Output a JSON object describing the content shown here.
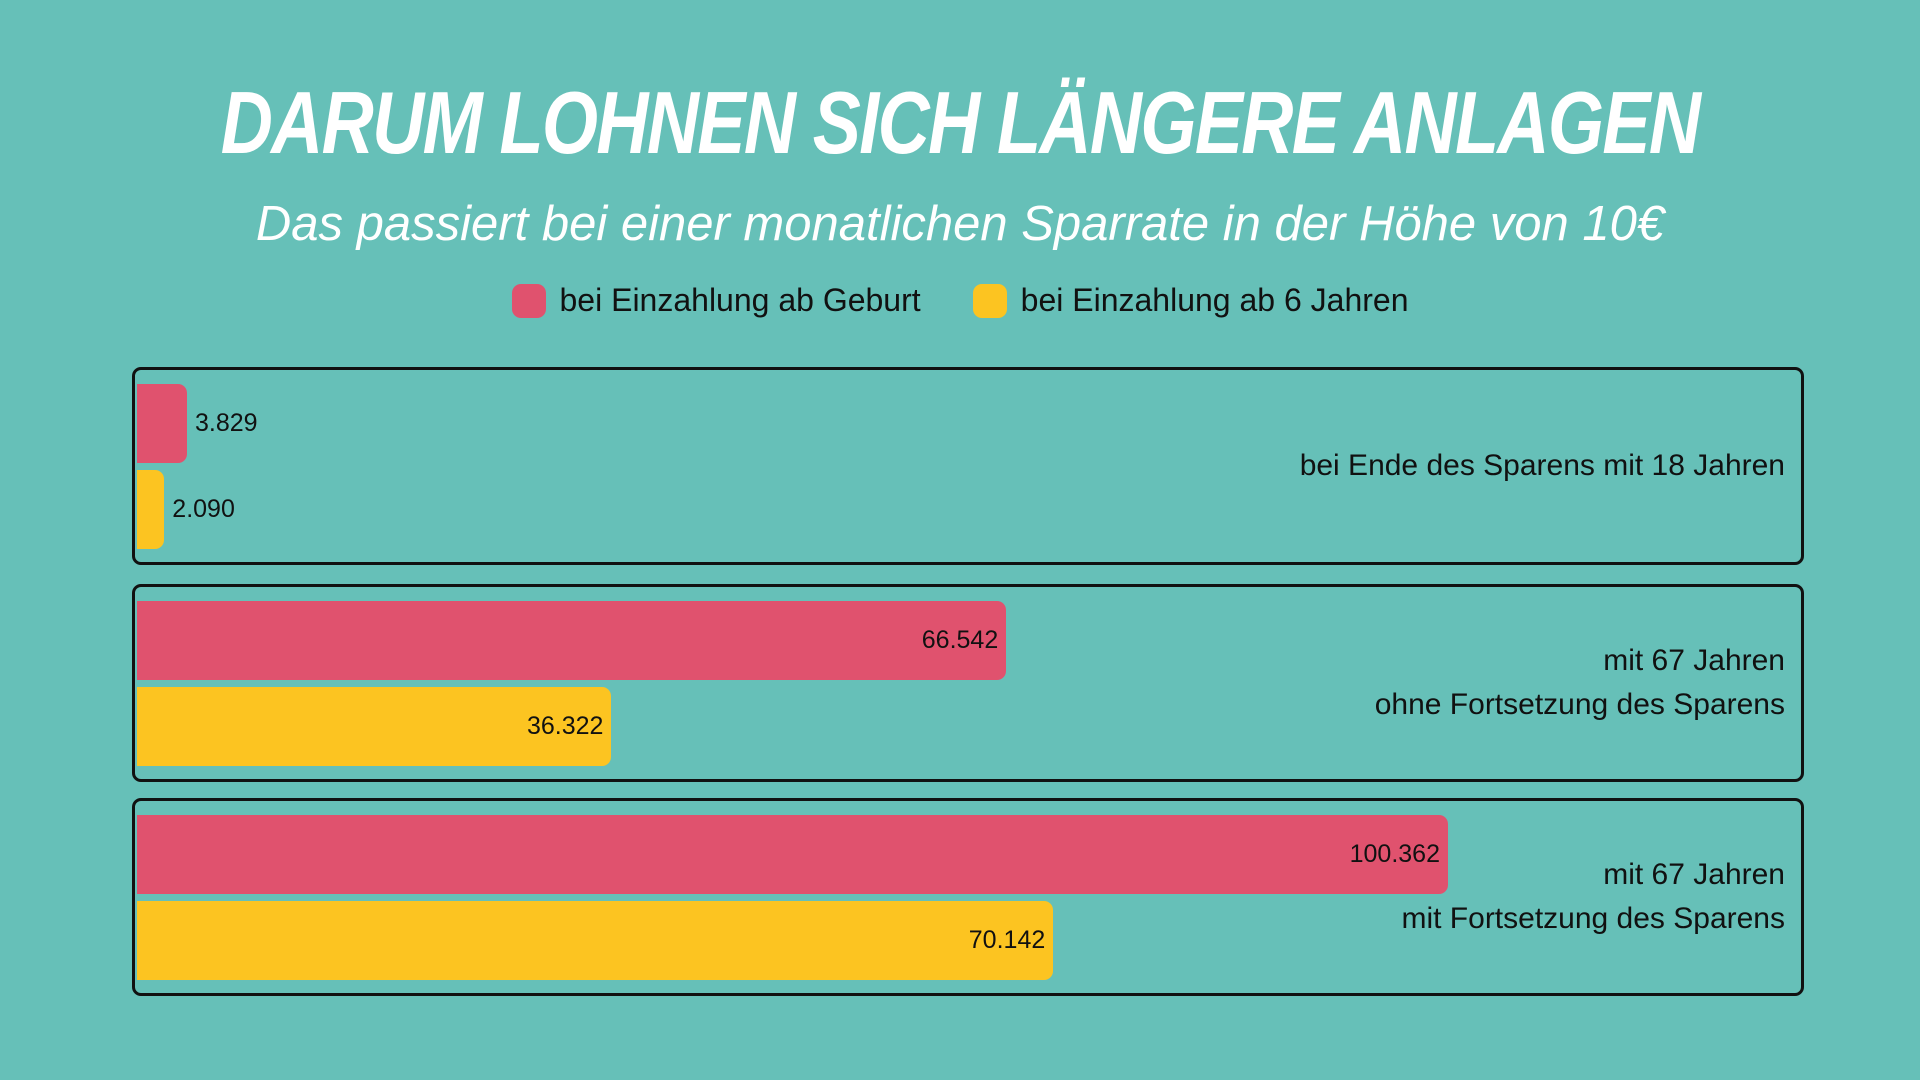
{
  "chart_data": {
    "type": "bar",
    "orientation": "horizontal",
    "title": "DARUM LOHNEN SICH LÄNGERE ANLAGEN",
    "subtitle": "Das passiert bei einer monatlichen Sparrate in der Höhe von 10€",
    "legend_placement": "top",
    "grid": false,
    "categories": [
      [
        "bei Ende des Sparens mit 18 Jahren"
      ],
      [
        "mit 67 Jahren",
        "ohne Fortsetzung des Sparens"
      ],
      [
        "mit 67 Jahren",
        "mit Fortsetzung des Sparens"
      ]
    ],
    "series": [
      {
        "name": "bei Einzahlung ab Geburt",
        "color": "#E0526E",
        "values": [
          3829,
          66542,
          100362
        ],
        "labels": [
          "3.829",
          "66.542",
          "100.362"
        ]
      },
      {
        "name": "bei Einzahlung ab 6 Jahren",
        "color": "#FCC421",
        "values": [
          2090,
          36322,
          70142
        ],
        "labels": [
          "2.090",
          "36.322",
          "70.142"
        ]
      }
    ],
    "xlim": [
      0,
      100362
    ]
  },
  "colors": {
    "background": "#66C0B8"
  }
}
